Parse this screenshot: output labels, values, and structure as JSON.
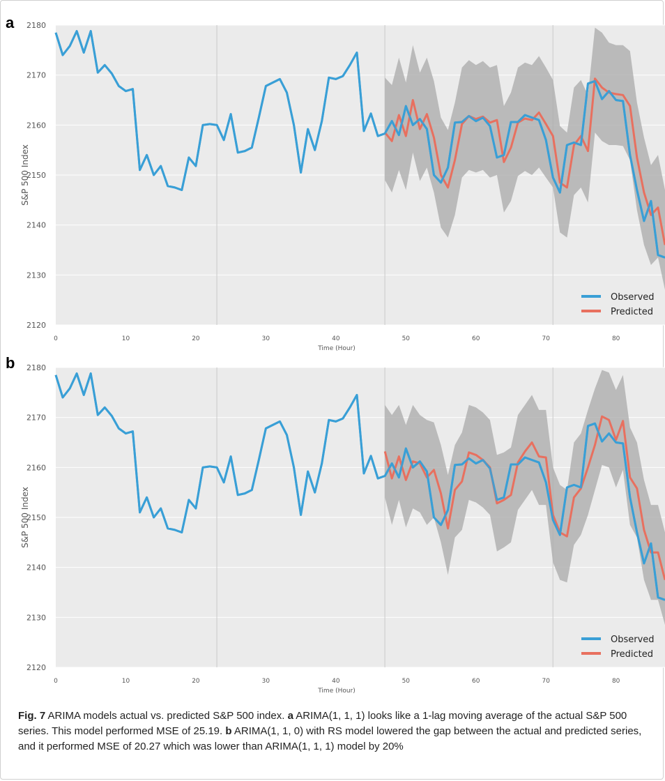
{
  "chart_data": [
    {
      "panel_label": "a",
      "type": "line",
      "xlabel": "Time (Hour)",
      "ylabel": "S&P 500 Index",
      "xlim": [
        0,
        87
      ],
      "ylim": [
        2120,
        2180
      ],
      "xticks": [
        0,
        10,
        20,
        30,
        40,
        50,
        60,
        70,
        80
      ],
      "yticks": [
        2120,
        2130,
        2140,
        2150,
        2160,
        2170,
        2180
      ],
      "grid": true,
      "legend_position": "lower-right",
      "colors": {
        "observed": "#3a9fd6",
        "predicted": "#e8705f",
        "band": "#a9a9a9",
        "background": "#ebebeb"
      },
      "series": [
        {
          "name": "Observed",
          "x_start": 0,
          "values": [
            2178.5,
            2174.0,
            2175.8,
            2178.8,
            2174.5,
            2178.8,
            2170.5,
            2172.0,
            2170.3,
            2167.8,
            2166.8,
            2167.2,
            2151.0,
            2154.0,
            2150.0,
            2151.8,
            2147.8,
            2147.5,
            2147.0,
            2153.5,
            2151.8,
            2160.0,
            2160.2,
            2160.0,
            2157.0,
            2162.2,
            2154.5,
            2154.8,
            2155.5,
            2161.5,
            2167.8,
            2168.5,
            2169.2,
            2166.5,
            2160.0,
            2150.5,
            2159.2,
            2155.0,
            2160.8,
            2169.5,
            2169.2,
            2169.8,
            2172.0,
            2174.5,
            2158.8,
            2162.3,
            2157.8,
            2158.3,
            2160.8,
            2158.0,
            2163.8,
            2160.0,
            2161.2,
            2159.2,
            2150.0,
            2148.5,
            2151.5,
            2160.5,
            2160.6,
            2161.8,
            2160.8,
            2161.5,
            2159.8,
            2153.5,
            2154.0,
            2160.6,
            2160.6,
            2162.0,
            2161.5,
            2161.0,
            2157.0,
            2149.5,
            2146.5,
            2156.0,
            2156.5,
            2156.0,
            2168.3,
            2168.8,
            2165.2,
            2166.8,
            2165.0,
            2164.8,
            2154.0,
            2147.0,
            2140.8,
            2144.8,
            2134.0,
            2133.5
          ]
        },
        {
          "name": "Predicted",
          "x_start": 47,
          "values": [
            2158.5,
            2156.8,
            2162.0,
            2157.8,
            2165.0,
            2159.2,
            2162.2,
            2157.5,
            2150.0,
            2147.5,
            2153.0,
            2160.2,
            2161.8,
            2161.2,
            2161.7,
            2160.5,
            2161.0,
            2152.6,
            2155.5,
            2160.5,
            2161.3,
            2161.0,
            2162.5,
            2160.2,
            2157.8,
            2148.5,
            2147.5,
            2156.0,
            2157.8,
            2154.8,
            2169.3,
            2167.5,
            2166.5,
            2166.2,
            2166.0,
            2163.8,
            2153.5,
            2146.5,
            2142.0,
            2143.5,
            2136.0
          ]
        },
        {
          "name": "band_upper",
          "x_start": 47,
          "values": [
            2169.5,
            2168.0,
            2173.5,
            2168.5,
            2176.0,
            2170.5,
            2173.5,
            2168.8,
            2161.5,
            2159.0,
            2164.5,
            2171.5,
            2173.0,
            2172.0,
            2172.8,
            2171.5,
            2172.0,
            2163.8,
            2166.5,
            2171.5,
            2172.5,
            2172.0,
            2173.8,
            2171.5,
            2169.0,
            2159.8,
            2158.5,
            2167.5,
            2169.0,
            2166.0,
            2179.5,
            2178.5,
            2176.5,
            2176.0,
            2176.0,
            2174.8,
            2164.5,
            2157.5,
            2152.0,
            2154.0,
            2147.0
          ]
        },
        {
          "name": "band_lower",
          "x_start": 47,
          "values": [
            2149.0,
            2146.5,
            2151.0,
            2147.0,
            2154.5,
            2148.8,
            2151.5,
            2146.5,
            2139.5,
            2137.5,
            2142.0,
            2149.5,
            2151.0,
            2150.5,
            2151.0,
            2149.5,
            2150.0,
            2142.5,
            2144.8,
            2149.8,
            2150.8,
            2150.0,
            2151.5,
            2149.5,
            2147.5,
            2138.5,
            2137.5,
            2146.0,
            2147.5,
            2144.5,
            2158.5,
            2156.8,
            2156.0,
            2156.0,
            2155.8,
            2153.0,
            2143.0,
            2136.0,
            2132.0,
            2133.5,
            2127.0
          ]
        }
      ]
    },
    {
      "panel_label": "b",
      "type": "line",
      "xlabel": "Time (Hour)",
      "ylabel": "S&P 500 Index",
      "xlim": [
        0,
        87
      ],
      "ylim": [
        2120,
        2180
      ],
      "xticks": [
        0,
        10,
        20,
        30,
        40,
        50,
        60,
        70,
        80
      ],
      "yticks": [
        2120,
        2130,
        2140,
        2150,
        2160,
        2170,
        2180
      ],
      "grid": true,
      "legend_position": "lower-right",
      "colors": {
        "observed": "#3a9fd6",
        "predicted": "#e8705f",
        "band": "#a9a9a9",
        "background": "#ebebeb"
      },
      "series": [
        {
          "name": "Observed",
          "x_start": 0,
          "values": [
            2178.5,
            2174.0,
            2175.8,
            2178.8,
            2174.5,
            2178.8,
            2170.5,
            2172.0,
            2170.3,
            2167.8,
            2166.8,
            2167.2,
            2151.0,
            2154.0,
            2150.0,
            2151.8,
            2147.8,
            2147.5,
            2147.0,
            2153.5,
            2151.8,
            2160.0,
            2160.2,
            2160.0,
            2157.0,
            2162.2,
            2154.5,
            2154.8,
            2155.5,
            2161.5,
            2167.8,
            2168.5,
            2169.2,
            2166.5,
            2160.0,
            2150.5,
            2159.2,
            2155.0,
            2160.8,
            2169.5,
            2169.2,
            2169.8,
            2172.0,
            2174.5,
            2158.8,
            2162.3,
            2157.8,
            2158.3,
            2160.8,
            2158.0,
            2163.8,
            2160.0,
            2161.2,
            2159.2,
            2150.0,
            2148.5,
            2151.5,
            2160.5,
            2160.6,
            2161.8,
            2160.8,
            2161.5,
            2159.8,
            2153.5,
            2154.0,
            2160.6,
            2160.6,
            2162.0,
            2161.5,
            2161.0,
            2157.0,
            2149.5,
            2146.5,
            2156.0,
            2156.5,
            2156.0,
            2168.3,
            2168.8,
            2165.2,
            2166.8,
            2165.0,
            2164.8,
            2154.0,
            2147.0,
            2140.8,
            2144.8,
            2134.0,
            2133.5
          ]
        },
        {
          "name": "Predicted",
          "x_start": 47,
          "values": [
            2163.2,
            2157.8,
            2162.2,
            2157.5,
            2161.2,
            2160.8,
            2158.0,
            2159.5,
            2154.8,
            2147.8,
            2155.5,
            2157.2,
            2163.0,
            2162.5,
            2161.5,
            2160.0,
            2152.8,
            2153.5,
            2154.5,
            2161.0,
            2163.2,
            2165.0,
            2162.2,
            2162.0,
            2150.5,
            2147.0,
            2146.2,
            2154.0,
            2155.8,
            2160.0,
            2164.5,
            2170.2,
            2169.5,
            2165.5,
            2169.3,
            2158.0,
            2155.8,
            2147.5,
            2143.0,
            2143.0,
            2137.5
          ]
        },
        {
          "name": "band_upper",
          "x_start": 47,
          "values": [
            2172.5,
            2170.5,
            2172.5,
            2168.5,
            2172.5,
            2170.5,
            2169.5,
            2169.0,
            2164.5,
            2158.5,
            2164.5,
            2167.0,
            2172.5,
            2172.0,
            2171.0,
            2169.5,
            2162.5,
            2163.0,
            2164.0,
            2170.5,
            2172.5,
            2174.5,
            2171.5,
            2171.5,
            2160.0,
            2156.5,
            2155.5,
            2165.0,
            2166.8,
            2171.5,
            2175.8,
            2179.5,
            2179.0,
            2175.5,
            2178.5,
            2168.0,
            2165.0,
            2157.5,
            2152.5,
            2152.5,
            2147.0
          ]
        },
        {
          "name": "band_lower",
          "x_start": 47,
          "values": [
            2154.0,
            2148.5,
            2153.5,
            2148.0,
            2151.8,
            2151.0,
            2148.5,
            2150.0,
            2145.0,
            2138.5,
            2146.0,
            2147.5,
            2153.5,
            2153.0,
            2152.0,
            2150.5,
            2143.2,
            2144.0,
            2145.0,
            2151.5,
            2153.5,
            2155.5,
            2152.5,
            2152.5,
            2141.0,
            2137.5,
            2137.0,
            2144.5,
            2146.5,
            2150.5,
            2155.5,
            2160.5,
            2160.0,
            2156.0,
            2159.5,
            2148.5,
            2146.0,
            2137.5,
            2133.5,
            2133.5,
            2128.5
          ]
        }
      ]
    }
  ],
  "caption": {
    "fig_label": "Fig. 7",
    "intro": " ARIMA models actual vs. predicted S&P 500 index. ",
    "a_label": "a",
    "a_text": " ARIMA(1, 1, 1) looks like a 1-lag moving average of the actual S&P 500 series. This model performed MSE of 25.19. ",
    "b_label": "b",
    "b_text": " ARIMA(1, 1, 0) with RS model lowered the gap between the actual and predicted series, and it performed MSE of 20.27 which was lower than ARIMA(1, 1, 1) model by 20%"
  }
}
